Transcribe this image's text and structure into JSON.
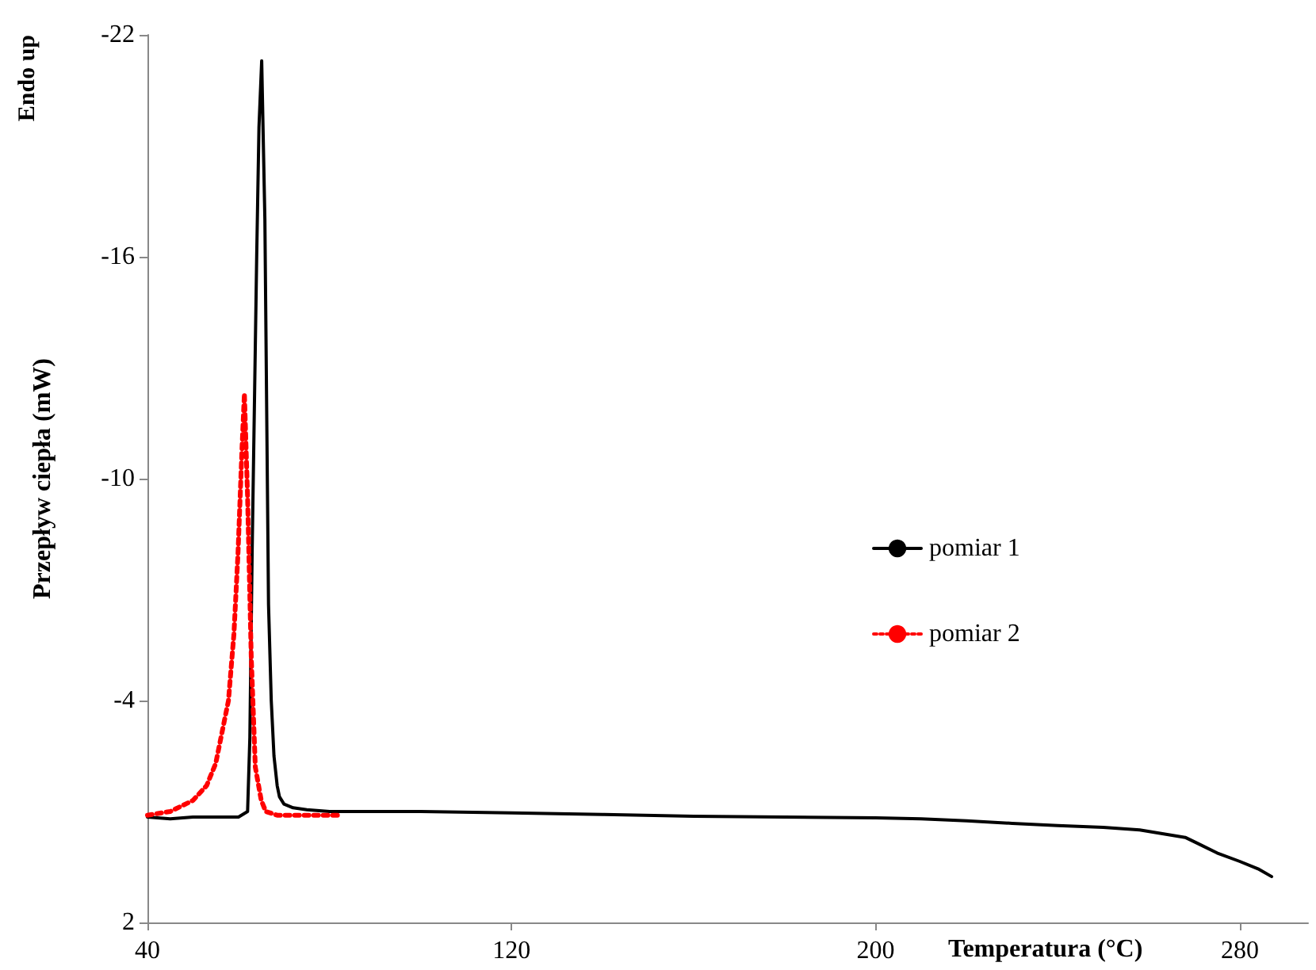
{
  "chart_data": {
    "type": "line",
    "xlabel": "Temperatura (°C)",
    "ylabel": "Przepływ ciepła (mW)",
    "annotations": [
      "Endo up"
    ],
    "xlim": [
      40,
      295
    ],
    "xticks": [
      40,
      120,
      200,
      280
    ],
    "ylim": [
      2,
      -22
    ],
    "yticks": [
      2,
      -4,
      -10,
      -16,
      -22
    ],
    "grid": false,
    "legend": "right",
    "marker": "none",
    "series": [
      {
        "name": "pomiar 1",
        "color": "#000000",
        "line_style": "solid",
        "x": [
          40,
          45,
          50,
          55,
          60,
          62,
          62.5,
          63,
          63.5,
          64,
          64.5,
          65.1,
          65.8,
          66.6,
          67.2,
          67.8,
          68.5,
          69,
          70,
          72,
          75,
          80,
          100,
          120,
          140,
          160,
          180,
          200,
          210,
          220,
          230,
          240,
          250,
          258,
          263,
          268,
          270.7,
          275,
          280,
          284,
          287
        ],
        "values": [
          -0.85,
          -0.8,
          -0.85,
          -0.85,
          -0.85,
          -1.0,
          -3,
          -8,
          -12,
          -16,
          -19.5,
          -21.3,
          -17,
          -6.6,
          -4,
          -2.5,
          -1.7,
          -1.4,
          -1.2,
          -1.1,
          -1.05,
          -1.0,
          -1.0,
          -0.96,
          -0.92,
          -0.87,
          -0.85,
          -0.83,
          -0.8,
          -0.75,
          -0.68,
          -0.62,
          -0.57,
          -0.5,
          -0.4,
          -0.3,
          -0.14,
          0.12,
          0.35,
          0.55,
          0.76
        ]
      },
      {
        "name": "pomiar 2",
        "color": "#ff0000",
        "line_style": "dotted",
        "x": [
          40,
          45,
          50,
          53,
          55,
          57.8,
          59,
          59.9,
          60.8,
          61.3,
          62,
          62.8,
          63.7,
          65,
          66,
          68.5,
          75,
          82
        ],
        "values": [
          -0.9,
          -1.0,
          -1.3,
          -1.7,
          -2.3,
          -4,
          -5.8,
          -8,
          -10.9,
          -12.3,
          -9.5,
          -5.2,
          -2.2,
          -1.3,
          -1.0,
          -0.9,
          -0.9,
          -0.9
        ]
      }
    ]
  }
}
